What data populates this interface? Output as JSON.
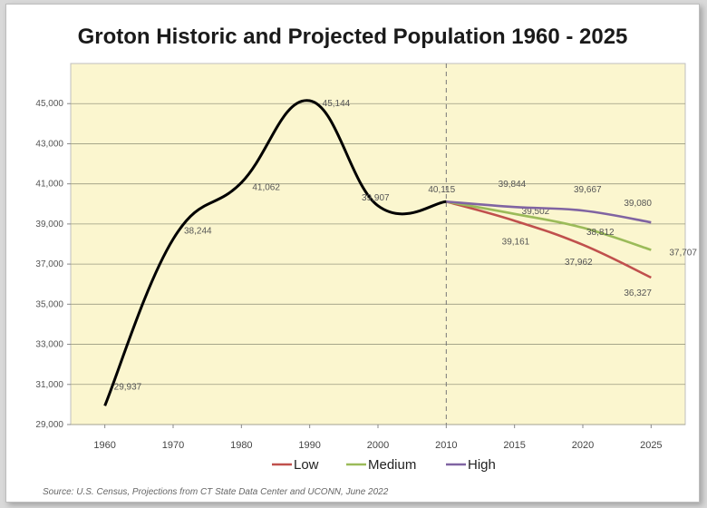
{
  "chart_data": {
    "type": "line",
    "title": "Groton Historic and Projected Population 1960 - 2025",
    "source": "Source: U.S. Census, Projections from CT State Data Center and UCONN, June 2022",
    "x_categories": [
      "1960",
      "1970",
      "1980",
      "1990",
      "2000",
      "2010",
      "2015",
      "2020",
      "2025"
    ],
    "ylim": [
      29000,
      47000
    ],
    "y_ticks": [
      "29,000",
      "31,000",
      "33,000",
      "35,000",
      "37,000",
      "39,000",
      "41,000",
      "43,000",
      "45,000"
    ],
    "grid": "horizontal",
    "divider_at": "2010",
    "historic": {
      "color": "#000000",
      "points": [
        {
          "x": "1960",
          "y": 29937,
          "label": "29,937"
        },
        {
          "x": "1970",
          "y": 38244,
          "label": "38,244"
        },
        {
          "x": "1980",
          "y": 41062,
          "label": "41,062"
        },
        {
          "x": "1990",
          "y": 45144,
          "label": "45,144"
        },
        {
          "x": "2000",
          "y": 39907,
          "label": "39,907"
        },
        {
          "x": "2010",
          "y": 40115,
          "label": "40,115"
        }
      ]
    },
    "series": [
      {
        "name": "Low",
        "color": "#c0504d",
        "points": [
          {
            "x": "2010",
            "y": 40115,
            "label": ""
          },
          {
            "x": "2015",
            "y": 39161,
            "label": "39,161"
          },
          {
            "x": "2020",
            "y": 37962,
            "label": "37,962"
          },
          {
            "x": "2025",
            "y": 36327,
            "label": "36,327"
          }
        ]
      },
      {
        "name": "Medium",
        "color": "#9bbb59",
        "points": [
          {
            "x": "2010",
            "y": 40115,
            "label": ""
          },
          {
            "x": "2015",
            "y": 39502,
            "label": "39,502"
          },
          {
            "x": "2020",
            "y": 38812,
            "label": "38,812"
          },
          {
            "x": "2025",
            "y": 37707,
            "label": "37,707"
          }
        ]
      },
      {
        "name": "High",
        "color": "#8064a2",
        "points": [
          {
            "x": "2010",
            "y": 40115,
            "label": ""
          },
          {
            "x": "2015",
            "y": 39844,
            "label": "39,844"
          },
          {
            "x": "2020",
            "y": 39667,
            "label": "39,667"
          },
          {
            "x": "2025",
            "y": 39080,
            "label": "39,080"
          }
        ]
      }
    ],
    "legend": {
      "position": "bottom",
      "entries": [
        "Low",
        "Medium",
        "High"
      ]
    },
    "plot_background": "#fbf6cf"
  }
}
